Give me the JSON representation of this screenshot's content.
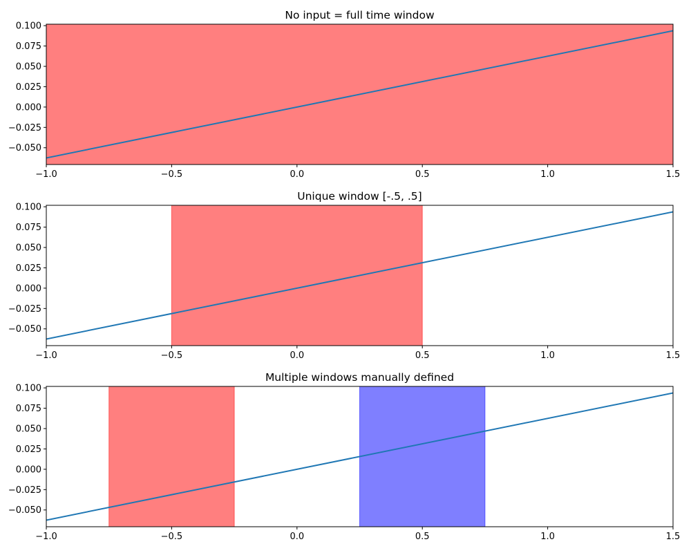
{
  "chart_data": [
    {
      "type": "line",
      "title": "No input = full time window",
      "xlabel": "",
      "ylabel": "",
      "xlim": [
        -1.0,
        1.5
      ],
      "ylim": [
        -0.0706,
        0.1018
      ],
      "grid": false,
      "xticks": [
        -1.0,
        -0.5,
        0.0,
        0.5,
        1.0,
        1.5
      ],
      "xtick_labels": [
        "−1.0",
        "−0.5",
        "0.0",
        "0.5",
        "1.0",
        "1.5"
      ],
      "yticks": [
        -0.05,
        -0.025,
        0.0,
        0.025,
        0.05,
        0.075,
        0.1
      ],
      "ytick_labels": [
        "−0.050",
        "−0.025",
        "0.000",
        "0.025",
        "0.050",
        "0.075",
        "0.100"
      ],
      "series": [
        {
          "x": [
            -1.0,
            1.5
          ],
          "y": [
            -0.0625,
            0.09375
          ],
          "color": "#1f77b4"
        }
      ],
      "spans": [
        {
          "x0": -1.0,
          "x1": 1.5,
          "color": "#ff0000",
          "alpha": 0.5
        }
      ]
    },
    {
      "type": "line",
      "title": "Unique window [-.5, .5]",
      "xlabel": "",
      "ylabel": "",
      "xlim": [
        -1.0,
        1.5
      ],
      "ylim": [
        -0.0706,
        0.1018
      ],
      "grid": false,
      "xticks": [
        -1.0,
        -0.5,
        0.0,
        0.5,
        1.0,
        1.5
      ],
      "xtick_labels": [
        "−1.0",
        "−0.5",
        "0.0",
        "0.5",
        "1.0",
        "1.5"
      ],
      "yticks": [
        -0.05,
        -0.025,
        0.0,
        0.025,
        0.05,
        0.075,
        0.1
      ],
      "ytick_labels": [
        "−0.050",
        "−0.025",
        "0.000",
        "0.025",
        "0.050",
        "0.075",
        "0.100"
      ],
      "series": [
        {
          "x": [
            -1.0,
            1.5
          ],
          "y": [
            -0.0625,
            0.09375
          ],
          "color": "#1f77b4"
        }
      ],
      "spans": [
        {
          "x0": -0.5,
          "x1": 0.5,
          "color": "#ff0000",
          "alpha": 0.5
        }
      ]
    },
    {
      "type": "line",
      "title": "Multiple windows manually defined",
      "xlabel": "",
      "ylabel": "",
      "xlim": [
        -1.0,
        1.5
      ],
      "ylim": [
        -0.0706,
        0.1018
      ],
      "grid": false,
      "xticks": [
        -1.0,
        -0.5,
        0.0,
        0.5,
        1.0,
        1.5
      ],
      "xtick_labels": [
        "−1.0",
        "−0.5",
        "0.0",
        "0.5",
        "1.0",
        "1.5"
      ],
      "yticks": [
        -0.05,
        -0.025,
        0.0,
        0.025,
        0.05,
        0.075,
        0.1
      ],
      "ytick_labels": [
        "−0.050",
        "−0.025",
        "0.000",
        "0.025",
        "0.050",
        "0.075",
        "0.100"
      ],
      "series": [
        {
          "x": [
            -1.0,
            1.5
          ],
          "y": [
            -0.0625,
            0.09375
          ],
          "color": "#1f77b4"
        }
      ],
      "spans": [
        {
          "x0": -0.75,
          "x1": -0.25,
          "color": "#ff0000",
          "alpha": 0.5
        },
        {
          "x0": 0.25,
          "x1": 0.75,
          "color": "#0000ff",
          "alpha": 0.5
        }
      ]
    }
  ]
}
